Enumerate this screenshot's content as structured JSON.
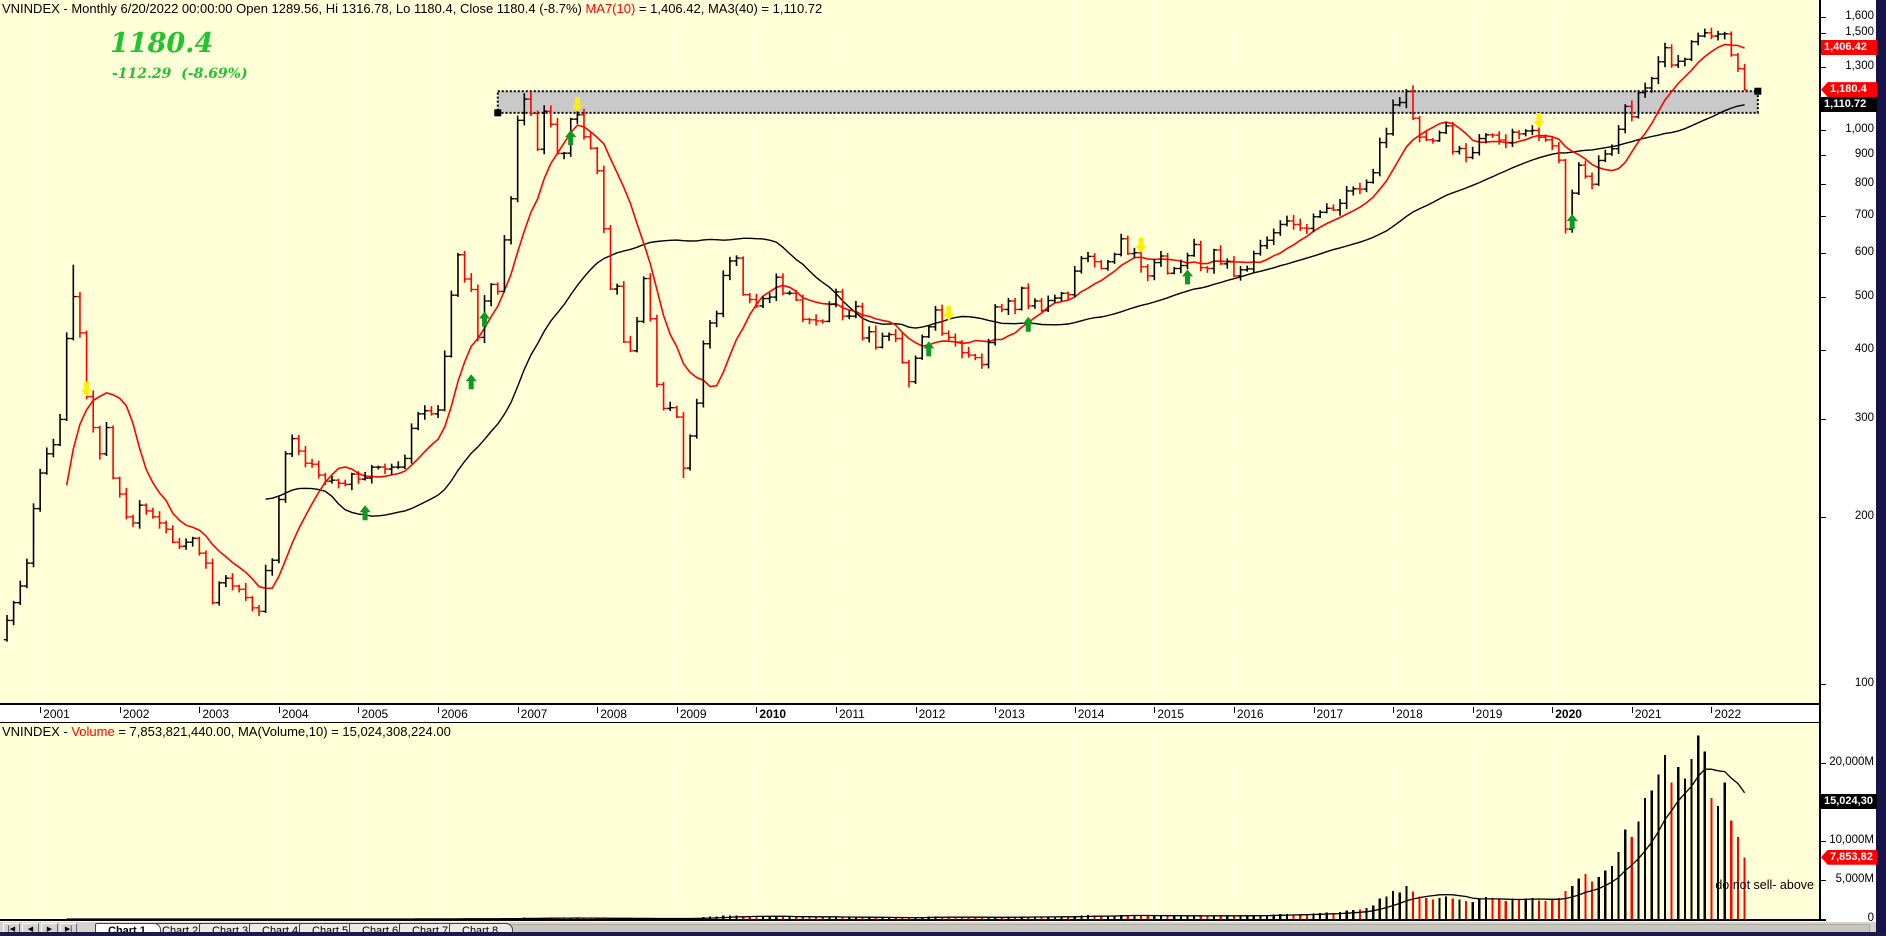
{
  "colors": {
    "background": "#FFFFD8",
    "up_bar": "#000000",
    "down_bar": "#FF0000",
    "ma_fast": "#FF0000",
    "ma_slow": "#000000",
    "quote_green": "#1FC42F",
    "marker_green": "#0B9A22",
    "marker_yellow": "#FFF000",
    "band_fill": "#C9C9C9",
    "axis_strip": "#FFFFFF",
    "window_edge": "#14144A"
  },
  "price_header": {
    "main": "VNINDEX - Monthly 6/20/2022 00:00:00 Open 1289.56, Hi 1316.78, Lo 1180.4, Close 1180.4 (-8.7%) ",
    "ma_red": "MA7(10)",
    "ma_rest": " = 1,406.42, MA3(40) = 1,110.72"
  },
  "volume_header": {
    "prefix": "VNINDEX - ",
    "red": "Volume",
    "rest": " = 7,853,821,440.00, MA(Volume,10) = 15,024,308,224.00"
  },
  "quote": {
    "price": "1180.4",
    "change_text": "-112.29  (-8.69%)"
  },
  "note": "do not sell- above",
  "tabs": {
    "nav": [
      "|◀",
      "◀",
      "▶",
      "▶|"
    ],
    "labels": [
      "Chart 1",
      "Chart 2",
      "Chart 3",
      "Chart 4",
      "Chart 5",
      "Chart 6",
      "Chart 7",
      "Chart 8"
    ],
    "active": "Chart 1"
  },
  "chart_data": {
    "type": "ohlc",
    "symbol": "VNINDEX",
    "timeframe": "Monthly",
    "x_range": [
      "2000-08",
      "2022-06"
    ],
    "start_month": "2000-08",
    "first_open": 120,
    "closes": [
      130,
      140,
      150,
      165,
      207,
      240,
      260,
      270,
      300,
      420,
      500,
      430,
      330,
      290,
      260,
      290,
      235,
      220,
      200,
      195,
      210,
      205,
      200,
      195,
      190,
      180,
      177,
      180,
      183,
      172,
      165,
      140,
      152,
      155,
      150,
      148,
      143,
      137,
      135,
      160,
      167,
      215,
      260,
      277,
      263,
      250,
      249,
      238,
      232,
      233,
      230,
      229,
      239,
      234,
      235,
      246,
      246,
      244,
      246,
      246,
      255,
      289,
      307,
      311,
      307,
      312,
      390,
      503,
      595,
      538,
      515,
      422,
      491,
      526,
      511,
      633,
      751,
      1041,
      1137,
      1071,
      923,
      1081,
      1024,
      907,
      908,
      1046,
      1065,
      972,
      927,
      844,
      663,
      516,
      522,
      414,
      399,
      451,
      539,
      456,
      347,
      314,
      315,
      303,
      245,
      280,
      321,
      411,
      448,
      466,
      546,
      580,
      587,
      504,
      494,
      481,
      496,
      499,
      542,
      507,
      507,
      493,
      455,
      454,
      452,
      451,
      484,
      510,
      461,
      461,
      480,
      421,
      432,
      405,
      424,
      427,
      420,
      380,
      351,
      387,
      423,
      441,
      473,
      429,
      422,
      414,
      396,
      392,
      388,
      377,
      413,
      479,
      474,
      491,
      474,
      518,
      481,
      491,
      472,
      492,
      497,
      507,
      504,
      556,
      586,
      591,
      578,
      562,
      578,
      596,
      636,
      598,
      600,
      566,
      545,
      576,
      592,
      551,
      562,
      569,
      593,
      621,
      564,
      562,
      607,
      573,
      579,
      545,
      559,
      561,
      598,
      618,
      632,
      652,
      675,
      685,
      675,
      665,
      664,
      697,
      710,
      722,
      717,
      737,
      776,
      783,
      782,
      804,
      837,
      949,
      984,
      1110,
      1121,
      1174,
      1050,
      971,
      960,
      956,
      989,
      1017,
      914,
      926,
      892,
      910,
      965,
      980,
      979,
      959,
      949,
      991,
      984,
      996,
      998,
      970,
      960,
      936,
      882,
      662,
      769,
      864,
      825,
      798,
      881,
      905,
      925,
      1003,
      1103,
      1056,
      1168,
      1191,
      1239,
      1328,
      1408,
      1310,
      1331,
      1342,
      1444,
      1478,
      1498,
      1478,
      1490,
      1492,
      1366,
      1292,
      1180.4
    ],
    "volumes_M": [
      1,
      1,
      1,
      2,
      2,
      3,
      3,
      4,
      5,
      6,
      8,
      7,
      5,
      4,
      3,
      3,
      3,
      3,
      2,
      2,
      3,
      2,
      2,
      2,
      2,
      2,
      2,
      2,
      2,
      2,
      2,
      2,
      2,
      2,
      2,
      2,
      2,
      2,
      2,
      3,
      3,
      5,
      8,
      9,
      7,
      5,
      5,
      4,
      4,
      4,
      4,
      4,
      5,
      5,
      5,
      6,
      6,
      5,
      6,
      6,
      7,
      10,
      12,
      12,
      11,
      13,
      20,
      35,
      50,
      40,
      35,
      25,
      30,
      35,
      33,
      55,
      80,
      140,
      170,
      150,
      110,
      130,
      110,
      90,
      85,
      120,
      130,
      100,
      95,
      90,
      70,
      60,
      65,
      55,
      50,
      70,
      90,
      70,
      55,
      45,
      50,
      60,
      50,
      90,
      160,
      280,
      350,
      300,
      420,
      480,
      440,
      300,
      280,
      260,
      280,
      300,
      380,
      320,
      300,
      280,
      250,
      260,
      250,
      240,
      280,
      240,
      200,
      220,
      240,
      180,
      190,
      170,
      190,
      180,
      170,
      150,
      140,
      180,
      280,
      320,
      340,
      260,
      230,
      210,
      190,
      180,
      170,
      160,
      220,
      280,
      260,
      300,
      260,
      340,
      280,
      260,
      240,
      260,
      270,
      290,
      300,
      380,
      420,
      520,
      460,
      400,
      420,
      440,
      520,
      460,
      470,
      420,
      400,
      380,
      420,
      360,
      380,
      390,
      430,
      470,
      400,
      380,
      440,
      400,
      410,
      380,
      400,
      420,
      470,
      510,
      540,
      580,
      620,
      640,
      600,
      570,
      560,
      700,
      750,
      820,
      800,
      900,
      1100,
      1150,
      1200,
      1400,
      1700,
      2600,
      2900,
      3600,
      3400,
      4200,
      3500,
      2900,
      2700,
      2500,
      2700,
      2900,
      2600,
      2500,
      2300,
      2200,
      2600,
      2800,
      2700,
      2500,
      2300,
      2600,
      2500,
      2600,
      2700,
      2400,
      2300,
      2600,
      2700,
      3600,
      4200,
      5200,
      5800,
      4800,
      5400,
      6200,
      6800,
      8600,
      11500,
      10500,
      12500,
      15500,
      16500,
      18500,
      21000,
      17500,
      19500,
      18000,
      20500,
      23500,
      21500,
      15500,
      14500,
      17500,
      12600,
      10500,
      7854
    ],
    "last_bar": {
      "date": "6/20/2022",
      "open": 1289.56,
      "high": 1316.78,
      "low": 1180.4,
      "close": 1180.4,
      "change_pct": "-8.7%"
    },
    "extremes": {
      "2001-06": {
        "high": 571
      },
      "2007-03": {
        "high": 1170
      },
      "2009-02": {
        "low": 235
      },
      "2018-04": {
        "high": 1204
      },
      "2020-03": {
        "low": 650
      },
      "2022-01": {
        "high": 1530
      }
    },
    "overlays": [
      {
        "name": "MA7(10)",
        "type": "sma",
        "period": 10,
        "last_value": 1406.42,
        "color": "#FF0000"
      },
      {
        "name": "MA3(40)",
        "type": "sma",
        "period": 40,
        "last_value": 1110.72,
        "color": "#000000"
      }
    ],
    "volume_ma": {
      "name": "MA(Volume,10)",
      "period": 10,
      "last_value_M": 15024.31,
      "color": "#000000"
    },
    "price_axis": {
      "scale": "log",
      "labels": [
        [
          "1,600",
          1600
        ],
        [
          "1,500",
          1500
        ],
        [
          "1,300",
          1300
        ],
        [
          "1,000",
          1000
        ],
        [
          "900",
          900
        ],
        [
          "800",
          800
        ],
        [
          "700",
          700
        ],
        [
          "600",
          600
        ],
        [
          "500",
          500
        ],
        [
          "400",
          400
        ],
        [
          "300",
          300
        ],
        [
          "200",
          200
        ],
        [
          "100",
          100
        ]
      ],
      "tags": [
        {
          "text": "1,406.42",
          "value": 1406.42,
          "bg": "red",
          "shape": "rect"
        },
        {
          "text": "1,180.4",
          "value": 1180.4,
          "bg": "red",
          "shape": "arrow"
        },
        {
          "text": "1,110.72",
          "value": 1110.72,
          "bg": "black",
          "shape": "rect"
        }
      ]
    },
    "volume_axis": {
      "scale": "linear",
      "labels": [
        [
          "20,000M",
          20000
        ],
        [
          "10,000M",
          10000
        ],
        [
          "5,000M",
          5000
        ],
        [
          "0",
          0
        ]
      ],
      "tags": [
        {
          "text": "15,024,30",
          "value_M": 15024,
          "bg": "black",
          "shape": "rect"
        },
        {
          "text": "7,853,82",
          "value_M": 7854,
          "bg": "red",
          "shape": "arrow"
        }
      ]
    },
    "years": [
      2001,
      2002,
      2003,
      2004,
      2005,
      2006,
      2007,
      2008,
      2009,
      2010,
      2011,
      2012,
      2013,
      2014,
      2015,
      2016,
      2017,
      2018,
      2019,
      2020,
      2021,
      2022
    ],
    "bold_years": [
      2010,
      2020
    ],
    "grid": "vertical-yearly-dotted",
    "band": {
      "from_month": "2006-10",
      "to_month": "2022-08",
      "price_top": 1175,
      "price_bottom": 1074,
      "style": "gray-fill-dotted-border-with-handles"
    },
    "markers": [
      {
        "month": "2001-08",
        "price": 330,
        "dir": "down",
        "color": "yellow"
      },
      {
        "month": "2005-02",
        "price": 210,
        "dir": "up",
        "color": "green"
      },
      {
        "month": "2006-06",
        "price": 362,
        "dir": "up",
        "color": "green"
      },
      {
        "month": "2006-08",
        "price": 470,
        "dir": "up",
        "color": "green"
      },
      {
        "month": "2007-09",
        "price": 1000,
        "dir": "up",
        "color": "green"
      },
      {
        "month": "2007-10",
        "price": 1078,
        "dir": "down",
        "color": "yellow"
      },
      {
        "month": "2012-03",
        "price": 415,
        "dir": "up",
        "color": "green"
      },
      {
        "month": "2012-06",
        "price": 452,
        "dir": "down",
        "color": "yellow"
      },
      {
        "month": "2013-06",
        "price": 460,
        "dir": "up",
        "color": "green"
      },
      {
        "month": "2014-11",
        "price": 600,
        "dir": "down",
        "color": "yellow"
      },
      {
        "month": "2015-06",
        "price": 560,
        "dir": "up",
        "color": "green"
      },
      {
        "month": "2019-11",
        "price": 1008,
        "dir": "down",
        "color": "yellow"
      },
      {
        "month": "2020-04",
        "price": 705,
        "dir": "up",
        "color": "green"
      }
    ]
  }
}
